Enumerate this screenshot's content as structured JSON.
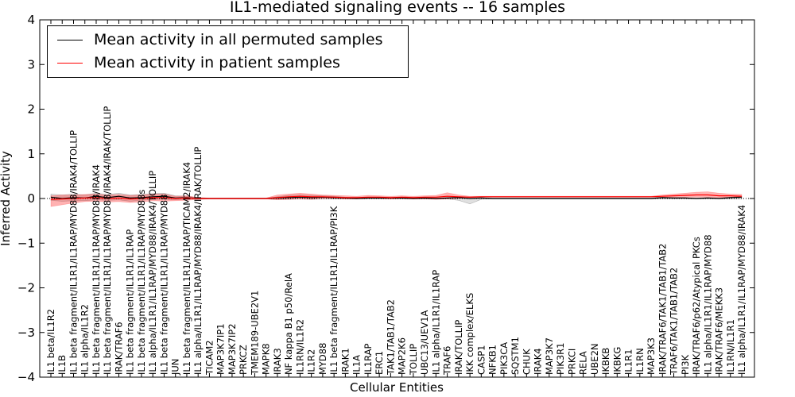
{
  "chart_data": {
    "type": "line",
    "title": "IL1-mediated signaling events -- 16 samples",
    "xlabel": "Cellular Entities",
    "ylabel": "Inferred Activity",
    "ylim": [
      -4,
      4
    ],
    "yticks": [
      "−4",
      "−3",
      "−2",
      "−1",
      "0",
      "1",
      "2",
      "3",
      "4"
    ],
    "categories": [
      "IL1 beta/IL1R2",
      "IL1B",
      "IL1 beta fragment/IL1R1/IL1RAP/MYD88/IRAK4/TOLLIP",
      "IL1 alpha/IL1R2",
      "IL1 beta fragment/IL1R1/IL1RAP/MYD88/IRAK4",
      "IL1 beta fragment/IL1R1/IL1RAP/MYD88/IRAK4/IRAK/TOLLIP",
      "IRAK/TRAF6",
      "IL1 beta fragment/IL1R1/IL1RAP",
      "IL1 beta fragment/IL1R1/IL1RAP/MYD88s",
      "IL1 alpha/IL1R1/IL1RAP/MYD88/IRAK4/TOLLIP",
      "IL1 beta fragment/IL1R1/IL1RAP/MYD88",
      "JUN",
      "IL1 beta fragment/IL1R1/IL1RAP/TICAM2/IRAK4",
      "IL1 alpha/IL1R1/IL1RAP/MYD88/IRAK4/IRAK/TOLLIP",
      "TICAM2",
      "MAP3K7IP1",
      "MAP3K7IP2",
      "PRKCZ",
      "TMEM189-UBE2V1",
      "MAPK8",
      "IRAK3",
      "NF kappa B1 p50/RelA",
      "IL1RN/IL1R2",
      "IL1R2",
      "MYD88",
      "IL1 beta fragment/IL1R1/IL1RAP/PI3K",
      "IRAK1",
      "IL1A",
      "IL1RAP",
      "ERC1",
      "TAK1/TAB1/TAB2",
      "MAP2K6",
      "TOLLIP",
      "UBC13/UEV1A",
      "IL1 alpha/IL1R1/IL1RAP",
      "TRAF6",
      "IRAK/TOLLIP",
      "IKK complex/ELKS",
      "CASP1",
      "NFKB1",
      "PIK3CA",
      "SQSTM1",
      "CHUK",
      "IRAK4",
      "MAP3K7",
      "PIK3R1",
      "PRKCI",
      "RELA",
      "UBE2N",
      "IKBKB",
      "IKBKG",
      "IL1R1",
      "IL1RN",
      "MAP3K3",
      "IRAK/TRAF6/TAK1/TAB1/TAB2",
      "TRAF6/TAK1/TAB1/TAB2",
      "PI3K",
      "IRAK/TRAF6/p62/Atypical PKCs",
      "IL1 alpha/IL1R1/IL1RAP/MYD88",
      "IRAK/TRAF6/MEKK3",
      "IL1RN/IL1R1",
      "IL1 alpha/IL1R1/IL1RAP/MYD88/IRAK4"
    ],
    "series": [
      {
        "name": "Mean activity in all permuted samples",
        "color": "#000000",
        "values": [
          0.03,
          0.0,
          0.02,
          0.01,
          0.05,
          0.02,
          0.05,
          0.01,
          0.02,
          0.04,
          0.05,
          0.01,
          0.02,
          0.0,
          0.0,
          0.0,
          0.0,
          0.0,
          0.0,
          0.0,
          0.01,
          0.02,
          0.03,
          0.02,
          0.03,
          0.02,
          0.01,
          0.0,
          0.01,
          0.01,
          0.01,
          0.01,
          0.0,
          0.01,
          0.0,
          0.01,
          0.02,
          0.0,
          0.01,
          0.0,
          0.0,
          0.0,
          0.0,
          0.0,
          0.0,
          0.0,
          0.0,
          0.0,
          0.0,
          0.0,
          0.0,
          0.0,
          0.0,
          0.0,
          0.02,
          0.01,
          0.01,
          0.0,
          0.01,
          0.0,
          0.02,
          0.03
        ],
        "band_upper": [
          0.1,
          0.08,
          0.1,
          0.08,
          0.12,
          0.09,
          0.12,
          0.08,
          0.09,
          0.11,
          0.12,
          0.06,
          0.05,
          0.02,
          0.01,
          0.01,
          0.01,
          0.01,
          0.01,
          0.01,
          0.04,
          0.07,
          0.08,
          0.07,
          0.06,
          0.05,
          0.03,
          0.01,
          0.02,
          0.02,
          0.02,
          0.02,
          0.01,
          0.02,
          0.01,
          0.02,
          0.04,
          0.02,
          0.02,
          0.01,
          0.01,
          0.01,
          0.01,
          0.01,
          0.01,
          0.01,
          0.01,
          0.01,
          0.01,
          0.01,
          0.01,
          0.01,
          0.01,
          0.01,
          0.03,
          0.02,
          0.02,
          0.01,
          0.02,
          0.01,
          0.03,
          0.05
        ],
        "band_lower": [
          -0.04,
          -0.06,
          -0.05,
          -0.05,
          -0.03,
          -0.04,
          -0.03,
          -0.06,
          -0.04,
          -0.02,
          -0.02,
          -0.03,
          -0.02,
          -0.01,
          -0.01,
          -0.01,
          -0.01,
          -0.01,
          -0.01,
          -0.01,
          -0.02,
          -0.02,
          -0.01,
          -0.02,
          -0.01,
          -0.01,
          -0.01,
          -0.01,
          -0.01,
          -0.01,
          -0.01,
          -0.01,
          -0.01,
          -0.01,
          -0.01,
          -0.01,
          -0.04,
          -0.12,
          -0.02,
          -0.01,
          -0.01,
          -0.01,
          -0.01,
          -0.01,
          -0.01,
          -0.01,
          -0.01,
          -0.01,
          -0.01,
          -0.01,
          -0.01,
          -0.01,
          -0.01,
          -0.01,
          -0.01,
          -0.01,
          -0.01,
          -0.01,
          -0.01,
          -0.01,
          -0.01,
          -0.01
        ]
      },
      {
        "name": "Mean activity in patient samples",
        "color": "#ff0000",
        "values": [
          -0.02,
          -0.01,
          0.0,
          0.01,
          0.02,
          0.0,
          0.01,
          -0.01,
          0.0,
          0.02,
          0.02,
          0.0,
          0.01,
          0.0,
          0.0,
          0.0,
          0.0,
          0.0,
          0.0,
          0.0,
          0.02,
          0.04,
          0.05,
          0.04,
          0.04,
          0.03,
          0.02,
          0.02,
          0.03,
          0.03,
          0.02,
          0.03,
          0.02,
          0.03,
          0.03,
          0.05,
          0.04,
          0.03,
          0.04,
          0.04,
          0.04,
          0.04,
          0.04,
          0.04,
          0.04,
          0.04,
          0.04,
          0.04,
          0.04,
          0.04,
          0.04,
          0.04,
          0.04,
          0.04,
          0.05,
          0.06,
          0.07,
          0.08,
          0.08,
          0.06,
          0.06,
          0.05
        ],
        "band_upper": [
          0.06,
          0.08,
          0.08,
          0.09,
          0.1,
          0.08,
          0.09,
          0.07,
          0.08,
          0.1,
          0.1,
          0.05,
          0.06,
          0.02,
          0.01,
          0.01,
          0.01,
          0.01,
          0.01,
          0.01,
          0.08,
          0.1,
          0.12,
          0.1,
          0.08,
          0.07,
          0.06,
          0.05,
          0.07,
          0.06,
          0.05,
          0.06,
          0.05,
          0.06,
          0.07,
          0.13,
          0.08,
          0.05,
          0.05,
          0.05,
          0.05,
          0.05,
          0.05,
          0.05,
          0.05,
          0.05,
          0.05,
          0.05,
          0.05,
          0.05,
          0.05,
          0.05,
          0.05,
          0.05,
          0.08,
          0.1,
          0.12,
          0.14,
          0.15,
          0.12,
          0.1,
          0.09
        ],
        "band_lower": [
          -0.18,
          -0.14,
          -0.1,
          -0.07,
          -0.06,
          -0.08,
          -0.07,
          -0.09,
          -0.08,
          -0.05,
          -0.06,
          -0.05,
          -0.04,
          -0.02,
          -0.01,
          -0.01,
          -0.01,
          -0.01,
          -0.01,
          -0.01,
          -0.03,
          -0.02,
          -0.01,
          -0.02,
          0.0,
          0.0,
          -0.01,
          -0.01,
          0.0,
          0.0,
          -0.01,
          0.0,
          -0.01,
          -0.01,
          -0.02,
          -0.01,
          0.0,
          0.02,
          0.03,
          0.03,
          0.03,
          0.03,
          0.03,
          0.03,
          0.03,
          0.03,
          0.03,
          0.03,
          0.03,
          0.03,
          0.03,
          0.03,
          0.03,
          0.03,
          0.03,
          0.03,
          0.03,
          0.03,
          0.03,
          0.02,
          0.02,
          0.02
        ]
      }
    ],
    "legend_position": "top-left",
    "zero_line": "dotted"
  }
}
